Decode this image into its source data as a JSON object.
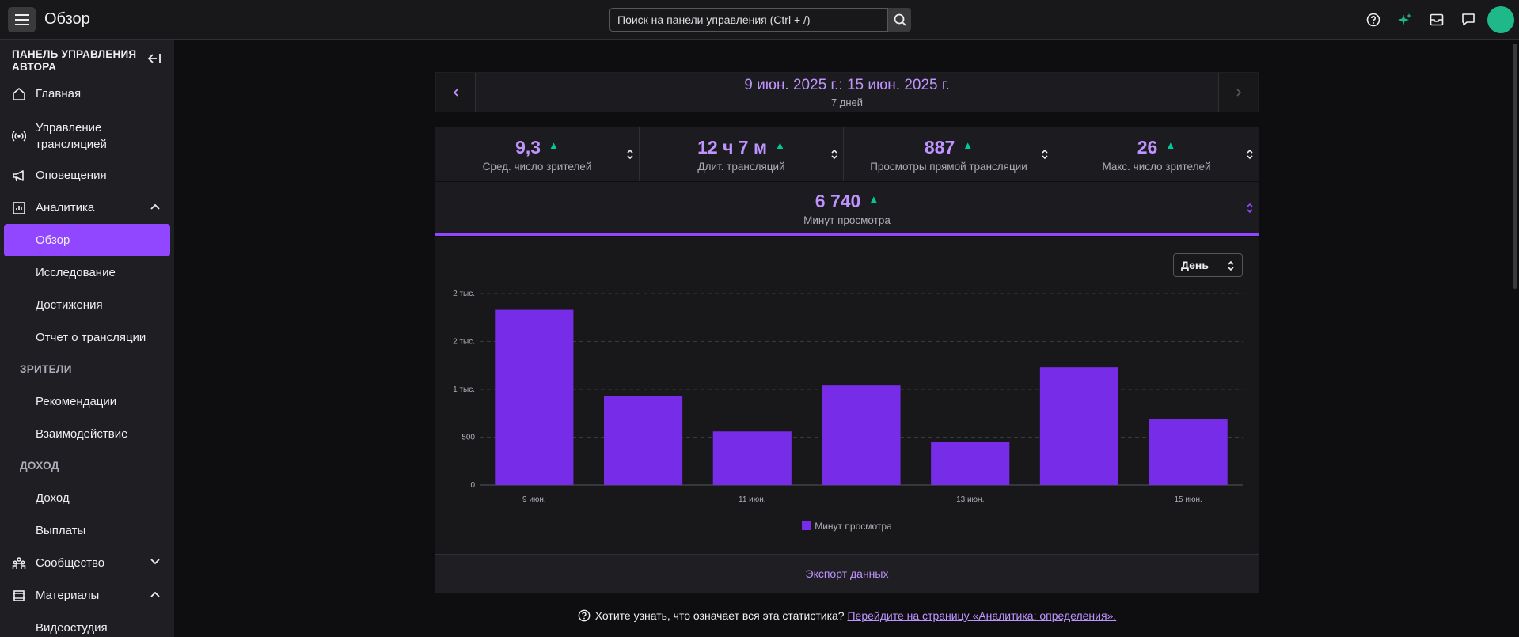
{
  "header": {
    "title": "Обзор",
    "search_placeholder": "Поиск на панели управления (Ctrl + /)",
    "icons": [
      "help-icon",
      "sparkle-icon",
      "inbox-icon",
      "whispers-icon"
    ],
    "avatar_color": "#1fb889"
  },
  "sidebar": {
    "heading": "ПАНЕЛЬ УПРАВЛЕНИЯ АВТОРА",
    "items": [
      {
        "label": "Главная",
        "icon": "home-icon"
      },
      {
        "label": "Управление трансляцией",
        "icon": "broadcast-icon"
      },
      {
        "label": "Оповещения",
        "icon": "megaphone-icon"
      },
      {
        "label": "Аналитика",
        "icon": "analytics-icon",
        "expanded": true
      },
      {
        "label": "Обзор",
        "active": true
      },
      {
        "label": "Исследование"
      },
      {
        "label": "Достижения"
      },
      {
        "label": "Отчет о трансляции"
      },
      {
        "label": "Рекомендации"
      },
      {
        "label": "Взаимодействие"
      },
      {
        "label": "Доход"
      },
      {
        "label": "Выплаты"
      },
      {
        "label": "Сообщество",
        "icon": "community-icon",
        "expanded": false
      },
      {
        "label": "Материалы",
        "icon": "content-icon",
        "expanded": true
      },
      {
        "label": "Видеостудия"
      }
    ],
    "sections": [
      "ЗРИТЕЛИ",
      "ДОХОД"
    ]
  },
  "date_range": {
    "range": "9 июн. 2025 г.: 15 июн. 2025 г.",
    "days": "7 дней"
  },
  "kpis": [
    {
      "value": "9,3",
      "label": "Сред. число зрителей",
      "trend": "up"
    },
    {
      "value": "12 ч 7 м",
      "label": "Длит. трансляций",
      "trend": "up"
    },
    {
      "value": "887",
      "label": "Просмотры прямой трансляции",
      "trend": "up"
    },
    {
      "value": "26",
      "label": "Макс. число зрителей",
      "trend": "up"
    }
  ],
  "kpi_selected": {
    "value": "6 740",
    "label": "Минут просмотра",
    "trend": "up"
  },
  "granularity": {
    "selected": "День"
  },
  "chart_data": {
    "type": "bar",
    "categories": [
      "9 июн.",
      "10 июн.",
      "11 июн.",
      "12 июн.",
      "13 июн.",
      "14 июн.",
      "15 июн."
    ],
    "x_tick_labels": [
      "9 июн.",
      "",
      "11 июн.",
      "",
      "13 июн.",
      "",
      "15 июн."
    ],
    "series": [
      {
        "name": "Минут просмотра",
        "values": [
          1830,
          930,
          560,
          1040,
          450,
          1230,
          690
        ],
        "color": "#772ce8"
      }
    ],
    "yticks": [
      0,
      500,
      1000,
      1500,
      2000
    ],
    "ytick_labels": [
      "0",
      "500",
      "1 тыс.",
      "2 тыс.",
      "2 тыс."
    ],
    "ylim": [
      0,
      2000
    ],
    "grid": true,
    "legend": "bottom-center"
  },
  "export_label": "Экспорт данных",
  "help": {
    "text": "Хотите узнать, что означает вся эта статистика?",
    "link": "Перейдите на страницу «Аналитика: определения»."
  },
  "colors": {
    "accent": "#9147ff",
    "accent_text": "#bf94ff",
    "up_trend": "#00c995",
    "bar": "#772ce8"
  }
}
